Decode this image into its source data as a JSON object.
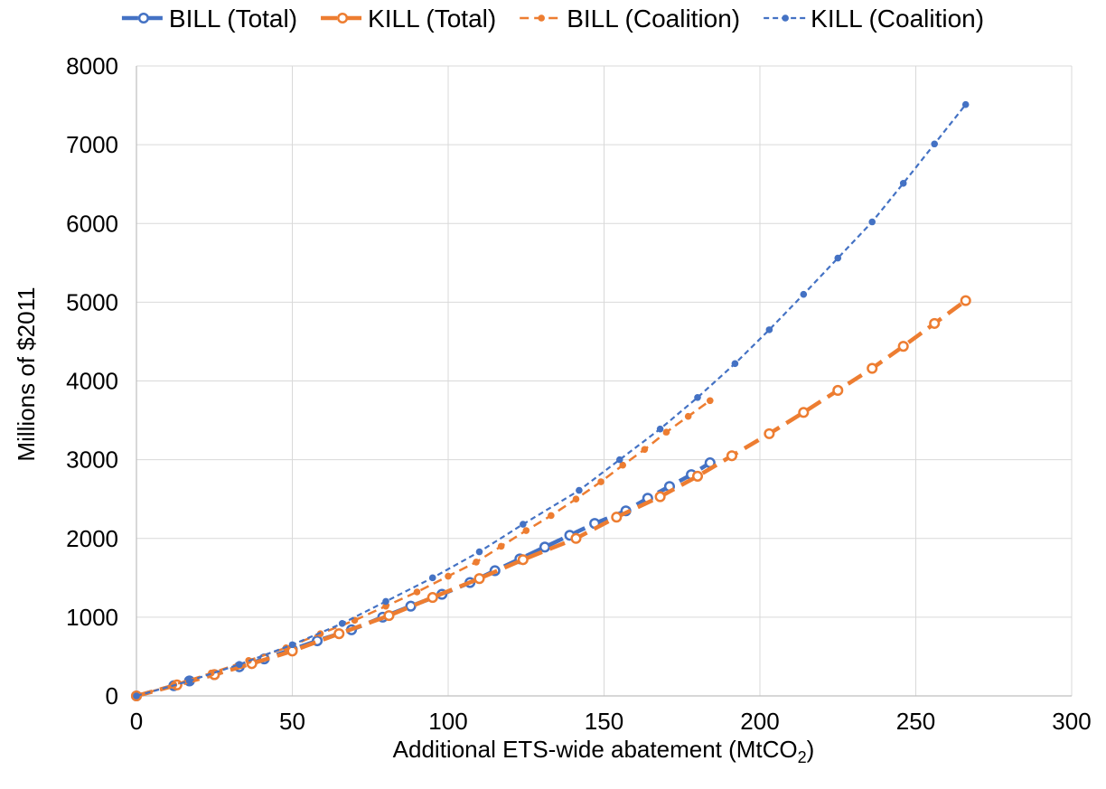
{
  "chart_data": {
    "type": "line",
    "title": "",
    "xlabel": "Additional ETS-wide abatement (MtCO",
    "xlabel_subscript": "2",
    "xlabel_suffix": ")",
    "ylabel": "Millions of $2011",
    "xlim": [
      0,
      300
    ],
    "ylim": [
      0,
      8000
    ],
    "xticks": [
      "0",
      "50",
      "100",
      "150",
      "200",
      "250",
      "300"
    ],
    "yticks": [
      "0",
      "1000",
      "2000",
      "3000",
      "4000",
      "5000",
      "6000",
      "7000",
      "8000"
    ],
    "grid": true,
    "legend_position": "top",
    "series": [
      {
        "name": "BILL (Total)",
        "color": "#4472C4",
        "style": "long-dash",
        "marker": "open-circle",
        "x": [
          0,
          12,
          17,
          25,
          33,
          41,
          50,
          58,
          69,
          79,
          88,
          98,
          107,
          115,
          123,
          131,
          139,
          147,
          157,
          164,
          171,
          178,
          184
        ],
        "y": [
          0,
          130,
          190,
          270,
          370,
          470,
          590,
          700,
          840,
          1000,
          1140,
          1290,
          1440,
          1590,
          1740,
          1890,
          2040,
          2190,
          2350,
          2510,
          2660,
          2810,
          2960
        ]
      },
      {
        "name": "KILL (Total)",
        "color": "#ED7D31",
        "style": "long-dash",
        "marker": "open-circle",
        "x": [
          0,
          13,
          25,
          37,
          50,
          65,
          81,
          95,
          110,
          124,
          141,
          154,
          168,
          180,
          191,
          203,
          214,
          225,
          236,
          246,
          256,
          266
        ],
        "y": [
          0,
          140,
          270,
          410,
          570,
          790,
          1020,
          1250,
          1490,
          1730,
          2000,
          2270,
          2530,
          2790,
          3050,
          3330,
          3600,
          3880,
          4160,
          4440,
          4730,
          5020
        ]
      },
      {
        "name": "BILL (Coalition)",
        "color": "#ED7D31",
        "style": "dash",
        "marker": "dot",
        "x": [
          0,
          12,
          24,
          36,
          48,
          59,
          70,
          80,
          90,
          100,
          109,
          117,
          125,
          133,
          141,
          149,
          156,
          163,
          170,
          177,
          184
        ],
        "y": [
          0,
          140,
          290,
          450,
          610,
          790,
          960,
          1140,
          1320,
          1520,
          1700,
          1900,
          2100,
          2290,
          2500,
          2720,
          2930,
          3130,
          3350,
          3550,
          3750
        ]
      },
      {
        "name": "KILL (Coalition)",
        "color": "#4472C4",
        "style": "short-dash",
        "marker": "dot",
        "x": [
          0,
          17,
          33,
          50,
          66,
          80,
          95,
          110,
          124,
          142,
          155,
          168,
          180,
          192,
          203,
          214,
          225,
          236,
          246,
          256,
          266
        ],
        "y": [
          0,
          190,
          400,
          650,
          920,
          1200,
          1500,
          1830,
          2180,
          2610,
          3000,
          3390,
          3790,
          4220,
          4650,
          5100,
          5560,
          6020,
          6510,
          7010,
          7510
        ]
      }
    ]
  }
}
